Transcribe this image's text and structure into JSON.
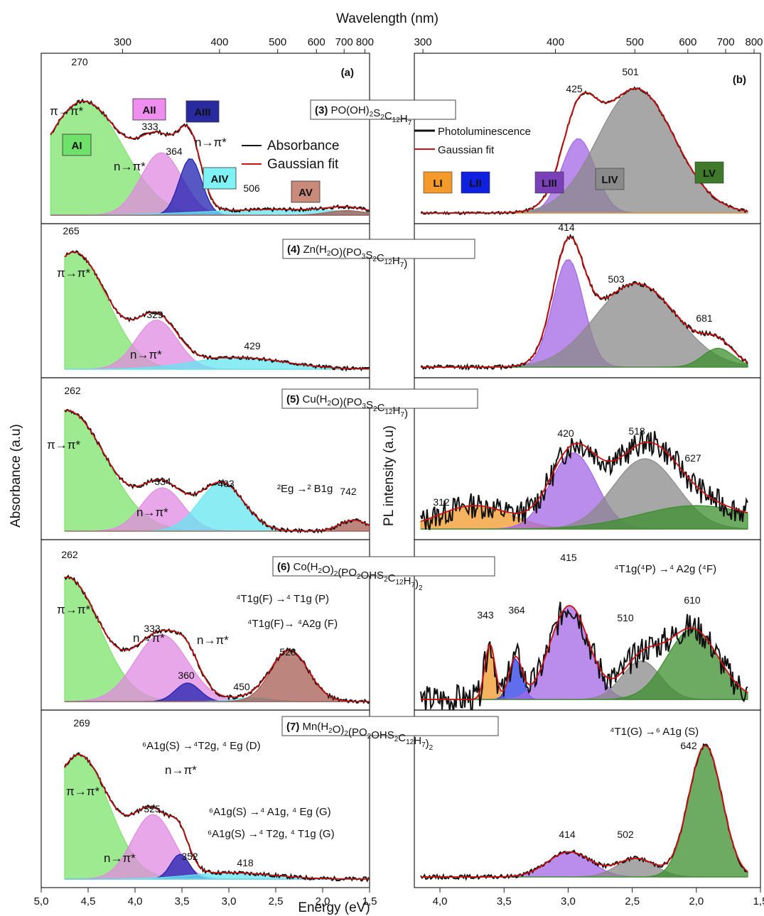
{
  "figure": {
    "top_axis_title": "Wavelength (nm)",
    "bottom_axis_title": "Energy (eV)",
    "left_axis_title": "Absorbance (a.u)",
    "right_axis_title": "PL intensity  (a.u)",
    "left_energy_ticks": [
      "5,0",
      "4,5",
      "4,0",
      "3,5",
      "3,0",
      "2,5",
      "2,0",
      "1,5"
    ],
    "right_energy_ticks": [
      "4,0",
      "3,5",
      "3,0",
      "2,5",
      "2,0",
      "1,5"
    ],
    "left_wavelength_ticks": [
      "300",
      "400",
      "500",
      "600",
      "700",
      "800"
    ],
    "right_wavelength_ticks": [
      "300",
      "400",
      "500",
      "600",
      "700",
      "800"
    ],
    "panel_a_label": "(a)",
    "panel_b_label": "(b)",
    "compounds": [
      {
        "number": "(3)",
        "formula": "PO(OH)2S2C12H7"
      },
      {
        "number": "(4)",
        "formula": "Zn(H2O)(PO3S2C12H7)"
      },
      {
        "number": "(5)",
        "formula": "Cu(H2O)(PO3S2C12H7)"
      },
      {
        "number": "(6)",
        "formula": "Co(H2O)2(PO2OHS2C12H7)2"
      },
      {
        "number": "(7)",
        "formula": "Mn(H2O)2(PO2OHS2C12H7)2"
      }
    ],
    "legend_a": [
      "Absorbance",
      "Gaussian fit"
    ],
    "legend_b": [
      "Photoluminescence",
      "Gaussian fit"
    ],
    "band_labels_a": [
      "AI",
      "AII",
      "AIII",
      "AIV",
      "AV"
    ],
    "band_labels_b": [
      "LI",
      "LII",
      "LIII",
      "LIV",
      "LV"
    ],
    "transitions": {
      "pi_pi": "π→π*",
      "n_pi": "n→π*",
      "cu_dd": "²Eg →² B1g",
      "co_1": "⁴T1g(F) →⁴ T1g (P)",
      "co_2": "⁴T1g(F)→ ⁴A2g (F)",
      "co_pl": "⁴T1g(⁴P) →⁴ A2g (⁴F)",
      "mn_1": "⁶A1g(S) →⁴T2g, ⁴ Eg (D)",
      "mn_2": "⁶A1g(S) →⁴ A1g, ⁴ Eg (G)",
      "mn_3": "⁶A1g(S) →⁴ T2g, ⁴ T1g (G)",
      "mn_pl": "⁴T1(G) →⁶ A1g (S)"
    },
    "colors": {
      "pi_pi": "#7de36b",
      "n_pi": "#e08ae0",
      "n_pi2": "#2020b0",
      "cyan": "#66e6f0",
      "brown": "#a65c52",
      "orange": "#f39a2a",
      "blue": "#2b3de8",
      "purple": "#a366e6",
      "gray": "#8a8a8a",
      "green": "#3c8f2e",
      "fit": "#cc1111",
      "data": "#111111"
    }
  },
  "chart_data": [
    {
      "type": "area",
      "panel": "a",
      "compound": "(3)",
      "title": "PO(OH)2S2C12H7",
      "xlabel": "Energy (eV)",
      "ylabel": "Absorbance (a.u)",
      "peaks_nm": [
        270,
        333,
        364,
        506
      ],
      "bands": [
        "AI",
        "AII",
        "AIII",
        "AIV",
        "AV"
      ]
    },
    {
      "type": "area",
      "panel": "a",
      "compound": "(4)",
      "title": "Zn(H2O)(PO3S2C12H7)",
      "peaks_nm": [
        265,
        329,
        429
      ]
    },
    {
      "type": "area",
      "panel": "a",
      "compound": "(5)",
      "title": "Cu(H2O)(PO3S2C12H7)",
      "peaks_nm": [
        262,
        334,
        403,
        742
      ]
    },
    {
      "type": "area",
      "panel": "a",
      "compound": "(6)",
      "title": "Co(H2O)2(PO2OHS2C12H7)2",
      "peaks_nm": [
        262,
        333,
        360,
        450,
        528
      ]
    },
    {
      "type": "area",
      "panel": "a",
      "compound": "(7)",
      "title": "Mn(H2O)2(PO2OHS2C12H7)2",
      "peaks_nm": [
        269,
        325,
        352,
        418
      ]
    },
    {
      "type": "area",
      "panel": "b",
      "compound": "(3)",
      "peaks_nm": [
        425,
        501
      ],
      "bands": [
        "LI",
        "LII",
        "LIII",
        "LIV",
        "LV"
      ]
    },
    {
      "type": "area",
      "panel": "b",
      "compound": "(4)",
      "peaks_nm": [
        414,
        503,
        681
      ]
    },
    {
      "type": "area",
      "panel": "b",
      "compound": "(5)",
      "peaks_nm": [
        312,
        420,
        518,
        627
      ]
    },
    {
      "type": "area",
      "panel": "b",
      "compound": "(6)",
      "peaks_nm": [
        343,
        364,
        415,
        510,
        610
      ]
    },
    {
      "type": "area",
      "panel": "b",
      "compound": "(7)",
      "peaks_nm": [
        414,
        502,
        642
      ]
    }
  ]
}
